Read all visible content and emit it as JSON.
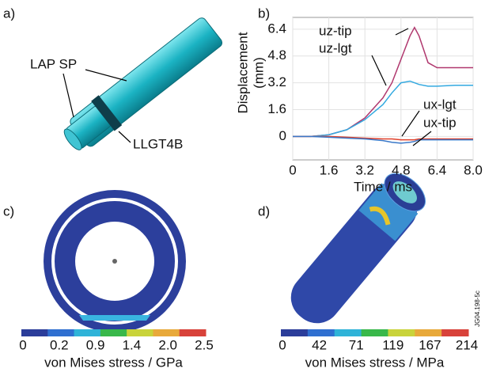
{
  "panels": {
    "a": {
      "label": "a)",
      "callouts": [
        "LAP SP",
        "LLGT4B"
      ]
    },
    "b": {
      "label": "b)"
    },
    "c": {
      "label": "c)",
      "colorbar": {
        "title": "von Mises stress / GPa",
        "ticks": [
          "0",
          "0.2",
          "0.9",
          "1.4",
          "2.0",
          "2.5"
        ]
      }
    },
    "d": {
      "label": "d)",
      "colorbar": {
        "title": "von Mises stress / MPa",
        "ticks": [
          "0",
          "42",
          "71",
          "119",
          "167",
          "214"
        ]
      },
      "code": "JG04.198-5c"
    }
  },
  "chart_data": {
    "type": "line",
    "xlabel": "Time / ms",
    "ylabel": [
      "Displacement",
      "(mm)"
    ],
    "x": [
      0,
      0.8,
      1.6,
      2.4,
      3.2,
      4.0,
      4.4,
      4.8,
      5.2,
      5.4,
      5.6,
      6.0,
      6.4,
      7.2,
      8.0
    ],
    "series": [
      {
        "name": "uz-tip",
        "color": "#b0386e",
        "values": [
          0,
          0,
          0.1,
          0.4,
          1.1,
          2.3,
          3.2,
          4.6,
          6.0,
          6.5,
          6.0,
          4.4,
          4.1,
          4.1,
          4.1
        ]
      },
      {
        "name": "uz-lgt",
        "color": "#33a9e0",
        "values": [
          0,
          0,
          0.1,
          0.4,
          1.0,
          1.9,
          2.6,
          3.2,
          3.3,
          3.2,
          3.1,
          3.0,
          3.0,
          3.05,
          3.05
        ]
      },
      {
        "name": "ux-lgt",
        "color": "#e0402a",
        "values": [
          0,
          0,
          0,
          -0.05,
          -0.1,
          -0.15,
          -0.15,
          -0.2,
          -0.2,
          -0.2,
          -0.15,
          -0.15,
          -0.15,
          -0.15,
          -0.15
        ]
      },
      {
        "name": "ux-tip",
        "color": "#3a78c8",
        "values": [
          0,
          0,
          -0.05,
          -0.1,
          -0.15,
          -0.25,
          -0.35,
          -0.4,
          -0.35,
          -0.3,
          -0.2,
          -0.2,
          -0.2,
          -0.2,
          -0.2
        ]
      }
    ],
    "xlim": [
      0,
      8
    ],
    "xticks": [
      0,
      1.6,
      3.2,
      4.8,
      6.4,
      {
        "value": 8,
        "label": "8.0"
      }
    ],
    "ylim": [
      -1.4,
      7.1
    ],
    "yticks": [
      0,
      1.6,
      3.2,
      4.8,
      6.4
    ],
    "grid": true
  }
}
